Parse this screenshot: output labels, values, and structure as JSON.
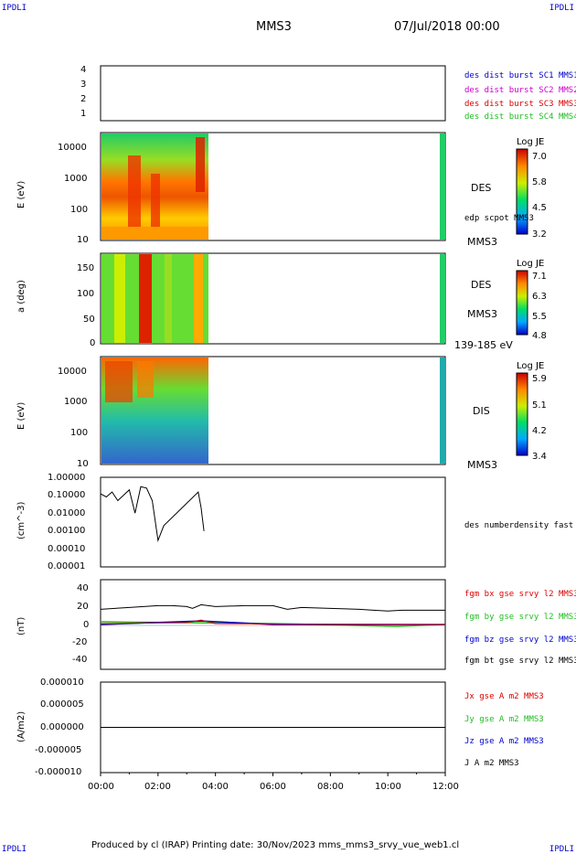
{
  "header": {
    "corner_tl": "IPDLI",
    "corner_tr": "IPDLI",
    "corner_bl": "IPDLI",
    "corner_br": "IPDLI",
    "title": "MMS3",
    "date": "07/Jul/2018 00:00"
  },
  "footer": {
    "text": "Produced by cl (IRAP)   Printing date: 30/Nov/2023   mms_mms3_srvy_vue_web1.cl"
  },
  "x_axis": {
    "ticks": [
      "00:00",
      "02:00",
      "04:00",
      "06:00",
      "08:00",
      "10:00",
      "12:00"
    ]
  },
  "colors": {
    "mms1": "#0000cc",
    "mms2": "#cc00cc",
    "mms3": "#dd0000",
    "mms4": "#22bb22",
    "bx": "#dd0000",
    "by": "#22bb22",
    "bz": "#0000cc",
    "bt": "#000000"
  },
  "panels": {
    "burst": {
      "yticks": [
        "4",
        "3",
        "2",
        "1"
      ],
      "legend": [
        "des dist burst SC1 MMS1",
        "des dist burst SC2 MMS2",
        "des dist burst SC3 MMS3",
        "des dist burst SC4 MMS4"
      ]
    },
    "des_energy": {
      "ylabel": "E (eV)",
      "yticks": [
        "10000",
        "1000",
        "100",
        "10"
      ],
      "side_label": "DES",
      "side_sub": "edp scpot MMS3",
      "side_bottom": "MMS3",
      "cb_title": "Log JE",
      "cb_ticks": [
        "7.0",
        "5.8",
        "4.5",
        "3.2"
      ]
    },
    "des_pitch": {
      "ylabel": "a (deg)",
      "yticks": [
        "150",
        "100",
        "50",
        "0"
      ],
      "side_label": "DES",
      "side_sub": "MMS3",
      "side_bottom": "139-185 eV",
      "cb_title": "Log JE",
      "cb_ticks": [
        "7.1",
        "6.3",
        "5.5",
        "4.8"
      ]
    },
    "dis_energy": {
      "ylabel": "E (eV)",
      "yticks": [
        "10000",
        "1000",
        "100",
        "10"
      ],
      "side_label": "DIS",
      "side_bottom": "MMS3",
      "cb_title": "Log JE",
      "cb_ticks": [
        "5.9",
        "5.1",
        "4.2",
        "3.4"
      ]
    },
    "density": {
      "ylabel": "(cm^-3)",
      "yticks": [
        "1.00000",
        "0.10000",
        "0.01000",
        "0.00100",
        "0.00010",
        "0.00001"
      ],
      "legend": "des numberdensity fast M"
    },
    "fgm": {
      "ylabel": "(nT)",
      "yticks": [
        "40",
        "20",
        "0",
        "-20",
        "-40"
      ],
      "legend": [
        "fgm bx gse srvy l2 MMS3",
        "fgm by gse srvy l2 MMS3",
        "fgm bz gse srvy l2 MMS3",
        "fgm bt gse srvy l2 MMS3"
      ]
    },
    "current": {
      "ylabel": "(A/m2)",
      "yticks": [
        "0.000010",
        "0.000005",
        "0.000000",
        "-0.000005",
        "-0.000010"
      ],
      "legend": [
        "Jx gse A m2 MMS3",
        "Jy gse A m2 MMS3",
        "Jz gse A m2 MMS3",
        "J A m2 MMS3"
      ]
    }
  },
  "chart_data": {
    "type": "line",
    "x_range_hours": [
      0,
      12
    ],
    "data_coverage_hours": [
      0,
      3.75
    ],
    "fgm_bt_nT": {
      "x": [
        0,
        0.5,
        1,
        1.5,
        2,
        2.5,
        3,
        3.2,
        3.5,
        4,
        5,
        6,
        6.5,
        7,
        8,
        9,
        9.5,
        10,
        10.5,
        11,
        12
      ],
      "y": [
        17,
        18,
        19,
        20,
        21,
        21,
        20,
        18,
        22,
        20,
        21,
        21,
        17,
        19,
        18,
        17,
        16,
        15,
        16,
        16,
        16
      ]
    },
    "fgm_bx_nT": {
      "x": [
        0,
        3,
        3.5,
        4,
        12
      ],
      "y": [
        1,
        2,
        5,
        1,
        0
      ]
    },
    "fgm_by_nT": {
      "x": [
        0,
        3,
        6,
        10.3,
        12
      ],
      "y": [
        3,
        2,
        1,
        -2,
        0
      ]
    },
    "fgm_bz_nT": {
      "x": [
        0,
        3.5,
        6,
        12
      ],
      "y": [
        0,
        4,
        0,
        0
      ]
    },
    "current_A_m2": {
      "x": [
        0,
        12
      ],
      "y": [
        0,
        0
      ]
    },
    "density_cm3": {
      "x": [
        0,
        0.2,
        0.4,
        0.6,
        0.8,
        1.0,
        1.2,
        1.4,
        1.6,
        1.8,
        2.0,
        2.2,
        3.4,
        3.5,
        3.6
      ],
      "y": [
        0.12,
        0.08,
        0.15,
        0.05,
        0.1,
        0.2,
        0.01,
        0.3,
        0.25,
        0.05,
        0.0003,
        0.002,
        0.15,
        0.02,
        0.001
      ]
    }
  }
}
